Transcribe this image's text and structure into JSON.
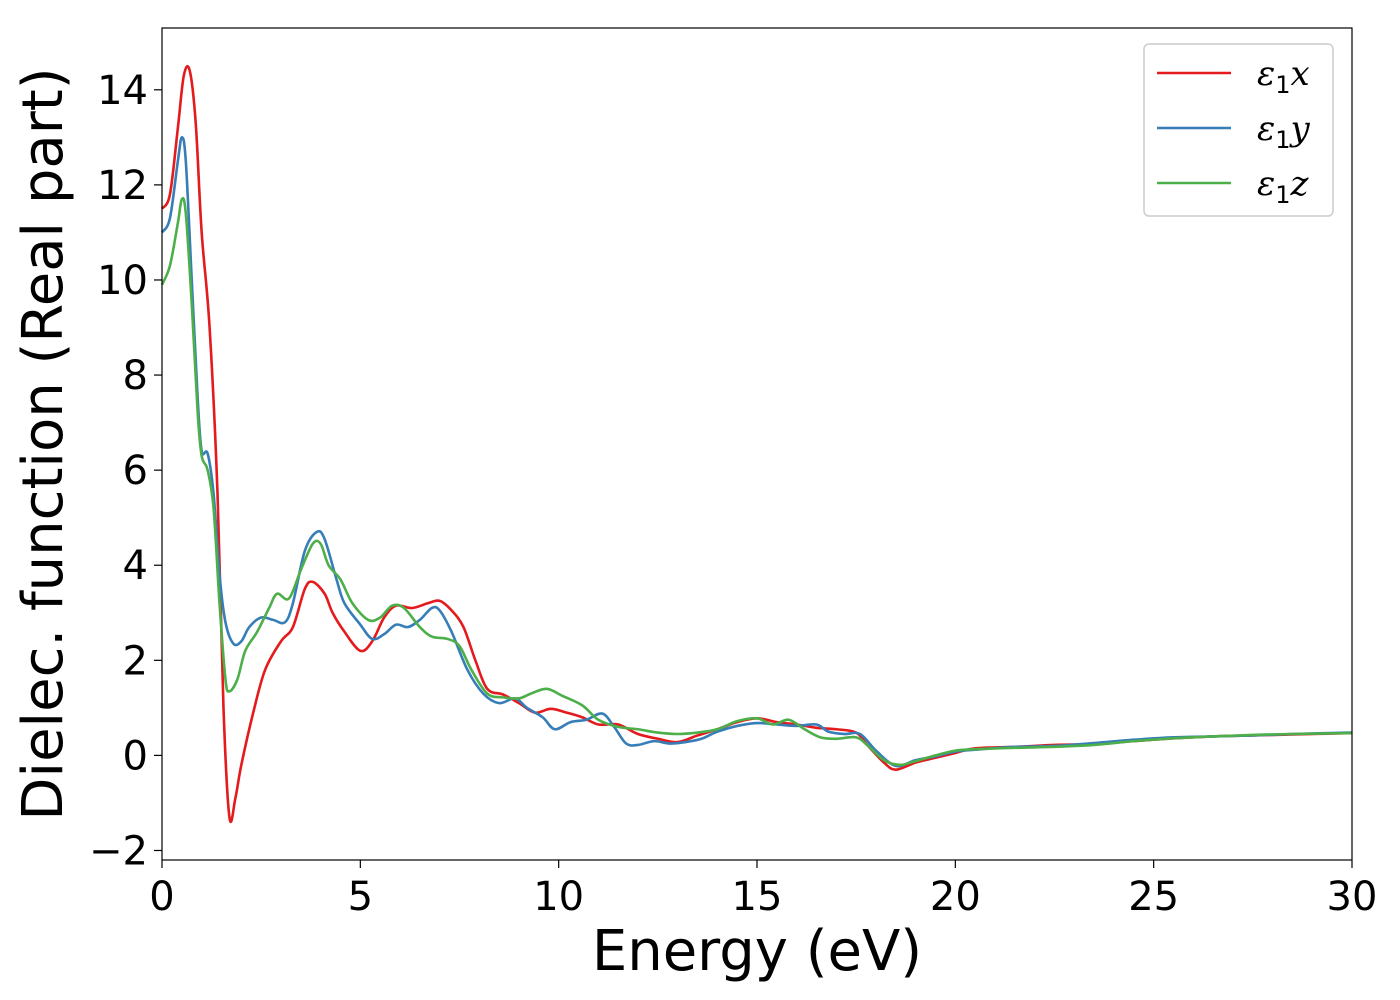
{
  "chart_data": {
    "type": "line",
    "xlabel": "Energy (eV)",
    "ylabel": "Dielec. function (Real part)",
    "xlim": [
      0,
      30
    ],
    "ylim": [
      -2.2,
      15.3
    ],
    "xticks": [
      0,
      5,
      10,
      15,
      20,
      25,
      30
    ],
    "yticks": [
      -2,
      0,
      2,
      4,
      6,
      8,
      10,
      12,
      14
    ],
    "ytick_labels": [
      "−2",
      "0",
      "2",
      "4",
      "6",
      "8",
      "10",
      "12",
      "14"
    ],
    "grid": false,
    "legend_position": "top-right",
    "series": [
      {
        "name": "ε",
        "name_sub": "1",
        "name_suffix": "x",
        "color": "#e41a1c",
        "points": [
          [
            0,
            11.5
          ],
          [
            0.2,
            11.8
          ],
          [
            0.4,
            13.2
          ],
          [
            0.55,
            14.3
          ],
          [
            0.7,
            14.4
          ],
          [
            0.85,
            13.3
          ],
          [
            1.0,
            11.0
          ],
          [
            1.2,
            9.0
          ],
          [
            1.4,
            5.5
          ],
          [
            1.55,
            1.0
          ],
          [
            1.7,
            -1.3
          ],
          [
            1.85,
            -0.9
          ],
          [
            2.0,
            -0.2
          ],
          [
            2.3,
            0.9
          ],
          [
            2.6,
            1.8
          ],
          [
            3.0,
            2.4
          ],
          [
            3.3,
            2.7
          ],
          [
            3.6,
            3.5
          ],
          [
            3.8,
            3.65
          ],
          [
            4.1,
            3.4
          ],
          [
            4.3,
            3.0
          ],
          [
            4.6,
            2.6
          ],
          [
            5.0,
            2.2
          ],
          [
            5.3,
            2.4
          ],
          [
            5.6,
            2.9
          ],
          [
            5.9,
            3.15
          ],
          [
            6.3,
            3.1
          ],
          [
            6.7,
            3.2
          ],
          [
            7.0,
            3.25
          ],
          [
            7.3,
            3.05
          ],
          [
            7.6,
            2.7
          ],
          [
            7.9,
            2.0
          ],
          [
            8.2,
            1.4
          ],
          [
            8.6,
            1.28
          ],
          [
            9.0,
            1.1
          ],
          [
            9.4,
            0.9
          ],
          [
            9.8,
            0.98
          ],
          [
            10.2,
            0.9
          ],
          [
            10.6,
            0.8
          ],
          [
            11.0,
            0.65
          ],
          [
            11.5,
            0.65
          ],
          [
            12.0,
            0.45
          ],
          [
            12.5,
            0.35
          ],
          [
            13.0,
            0.28
          ],
          [
            13.5,
            0.42
          ],
          [
            14.0,
            0.55
          ],
          [
            14.5,
            0.7
          ],
          [
            15.0,
            0.78
          ],
          [
            15.5,
            0.7
          ],
          [
            16.0,
            0.65
          ],
          [
            16.5,
            0.58
          ],
          [
            17.0,
            0.55
          ],
          [
            17.5,
            0.48
          ],
          [
            17.8,
            0.2
          ],
          [
            18.2,
            -0.15
          ],
          [
            18.5,
            -0.3
          ],
          [
            19.0,
            -0.15
          ],
          [
            19.5,
            -0.05
          ],
          [
            20.0,
            0.05
          ],
          [
            20.5,
            0.15
          ],
          [
            21.5,
            0.18
          ],
          [
            22.5,
            0.22
          ],
          [
            23.5,
            0.24
          ],
          [
            24.5,
            0.3
          ],
          [
            25.5,
            0.36
          ],
          [
            26.5,
            0.4
          ],
          [
            27.5,
            0.42
          ],
          [
            28.5,
            0.44
          ],
          [
            30,
            0.47
          ]
        ]
      },
      {
        "name": "ε",
        "name_sub": "1",
        "name_suffix": "y",
        "color": "#377eb8",
        "points": [
          [
            0,
            11.0
          ],
          [
            0.2,
            11.3
          ],
          [
            0.4,
            12.5
          ],
          [
            0.5,
            13.0
          ],
          [
            0.6,
            12.5
          ],
          [
            0.75,
            10.0
          ],
          [
            0.9,
            7.5
          ],
          [
            1.0,
            6.4
          ],
          [
            1.15,
            6.35
          ],
          [
            1.3,
            5.5
          ],
          [
            1.45,
            3.8
          ],
          [
            1.6,
            2.8
          ],
          [
            1.8,
            2.35
          ],
          [
            2.0,
            2.4
          ],
          [
            2.2,
            2.7
          ],
          [
            2.5,
            2.9
          ],
          [
            2.8,
            2.85
          ],
          [
            3.1,
            2.8
          ],
          [
            3.3,
            3.2
          ],
          [
            3.6,
            4.3
          ],
          [
            3.9,
            4.7
          ],
          [
            4.1,
            4.55
          ],
          [
            4.4,
            3.7
          ],
          [
            4.6,
            3.2
          ],
          [
            5.0,
            2.75
          ],
          [
            5.3,
            2.45
          ],
          [
            5.6,
            2.55
          ],
          [
            5.9,
            2.75
          ],
          [
            6.2,
            2.7
          ],
          [
            6.5,
            2.85
          ],
          [
            6.8,
            3.1
          ],
          [
            7.0,
            3.05
          ],
          [
            7.3,
            2.6
          ],
          [
            7.7,
            1.8
          ],
          [
            8.1,
            1.3
          ],
          [
            8.5,
            1.1
          ],
          [
            8.9,
            1.2
          ],
          [
            9.2,
            1.0
          ],
          [
            9.6,
            0.8
          ],
          [
            9.9,
            0.55
          ],
          [
            10.3,
            0.7
          ],
          [
            10.7,
            0.75
          ],
          [
            11.1,
            0.88
          ],
          [
            11.4,
            0.6
          ],
          [
            11.7,
            0.25
          ],
          [
            12.0,
            0.22
          ],
          [
            12.4,
            0.3
          ],
          [
            12.8,
            0.25
          ],
          [
            13.2,
            0.28
          ],
          [
            13.6,
            0.35
          ],
          [
            14.0,
            0.5
          ],
          [
            14.5,
            0.62
          ],
          [
            15.0,
            0.68
          ],
          [
            15.5,
            0.65
          ],
          [
            16.0,
            0.62
          ],
          [
            16.5,
            0.65
          ],
          [
            16.8,
            0.5
          ],
          [
            17.2,
            0.45
          ],
          [
            17.6,
            0.45
          ],
          [
            18.0,
            0.1
          ],
          [
            18.5,
            -0.22
          ],
          [
            19.0,
            -0.1
          ],
          [
            19.5,
            -0.02
          ],
          [
            20.0,
            0.08
          ],
          [
            20.5,
            0.12
          ],
          [
            21.5,
            0.18
          ],
          [
            22.5,
            0.2
          ],
          [
            23.5,
            0.26
          ],
          [
            24.5,
            0.33
          ],
          [
            25.5,
            0.38
          ],
          [
            26.5,
            0.4
          ],
          [
            27.5,
            0.42
          ],
          [
            28.5,
            0.45
          ],
          [
            30,
            0.48
          ]
        ]
      },
      {
        "name": "ε",
        "name_sub": "1",
        "name_suffix": "z",
        "color": "#4daf4a",
        "points": [
          [
            0,
            9.9
          ],
          [
            0.2,
            10.3
          ],
          [
            0.4,
            11.2
          ],
          [
            0.5,
            11.7
          ],
          [
            0.6,
            11.4
          ],
          [
            0.75,
            9.5
          ],
          [
            0.9,
            7.2
          ],
          [
            1.0,
            6.3
          ],
          [
            1.15,
            6.0
          ],
          [
            1.3,
            5.2
          ],
          [
            1.45,
            3.2
          ],
          [
            1.6,
            1.6
          ],
          [
            1.7,
            1.35
          ],
          [
            1.9,
            1.6
          ],
          [
            2.1,
            2.2
          ],
          [
            2.4,
            2.6
          ],
          [
            2.7,
            3.1
          ],
          [
            2.9,
            3.4
          ],
          [
            3.2,
            3.3
          ],
          [
            3.5,
            3.9
          ],
          [
            3.8,
            4.45
          ],
          [
            4.0,
            4.45
          ],
          [
            4.2,
            4.0
          ],
          [
            4.5,
            3.7
          ],
          [
            4.8,
            3.2
          ],
          [
            5.2,
            2.85
          ],
          [
            5.5,
            2.9
          ],
          [
            5.8,
            3.15
          ],
          [
            6.1,
            3.1
          ],
          [
            6.5,
            2.7
          ],
          [
            6.8,
            2.5
          ],
          [
            7.2,
            2.45
          ],
          [
            7.5,
            2.3
          ],
          [
            7.8,
            1.8
          ],
          [
            8.2,
            1.3
          ],
          [
            8.6,
            1.22
          ],
          [
            9.0,
            1.2
          ],
          [
            9.3,
            1.3
          ],
          [
            9.7,
            1.4
          ],
          [
            10.1,
            1.25
          ],
          [
            10.6,
            1.05
          ],
          [
            11.0,
            0.75
          ],
          [
            11.5,
            0.6
          ],
          [
            12.0,
            0.55
          ],
          [
            12.5,
            0.48
          ],
          [
            13.0,
            0.45
          ],
          [
            13.5,
            0.48
          ],
          [
            14.0,
            0.55
          ],
          [
            14.5,
            0.72
          ],
          [
            15.0,
            0.78
          ],
          [
            15.4,
            0.65
          ],
          [
            15.8,
            0.75
          ],
          [
            16.2,
            0.55
          ],
          [
            16.6,
            0.38
          ],
          [
            17.0,
            0.35
          ],
          [
            17.5,
            0.38
          ],
          [
            17.8,
            0.2
          ],
          [
            18.2,
            -0.1
          ],
          [
            18.6,
            -0.2
          ],
          [
            19.0,
            -0.12
          ],
          [
            19.5,
            0.0
          ],
          [
            20.0,
            0.1
          ],
          [
            20.5,
            0.13
          ],
          [
            21.5,
            0.16
          ],
          [
            22.5,
            0.18
          ],
          [
            23.5,
            0.22
          ],
          [
            24.5,
            0.3
          ],
          [
            25.5,
            0.36
          ],
          [
            26.5,
            0.4
          ],
          [
            27.5,
            0.43
          ],
          [
            28.5,
            0.45
          ],
          [
            30,
            0.47
          ]
        ]
      }
    ]
  }
}
